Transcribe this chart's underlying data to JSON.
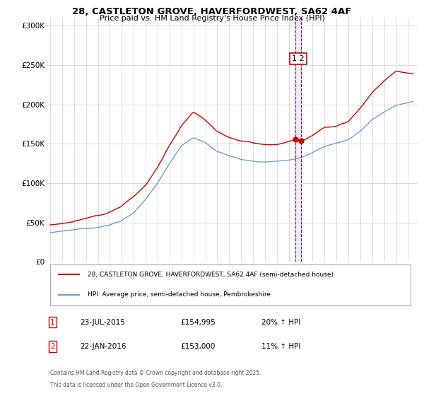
{
  "title_line1": "28, CASTLETON GROVE, HAVERFORDWEST, SA62 4AF",
  "title_line2": "Price paid vs. HM Land Registry's House Price Index (HPI)",
  "legend_line1": "28, CASTLETON GROVE, HAVERFORDWEST, SA62 4AF (semi-detached house)",
  "legend_line2": "HPI: Average price, semi-detached house, Pembrokeshire",
  "sale1_label": "1",
  "sale1_date": "23-JUL-2015",
  "sale1_price": "£154,995",
  "sale1_hpi": "20% ↑ HPI",
  "sale2_label": "2",
  "sale2_date": "22-JAN-2016",
  "sale2_price": "£153,000",
  "sale2_hpi": "11% ↑ HPI",
  "footnote_line1": "Contains HM Land Registry data © Crown copyright and database right 2025.",
  "footnote_line2": "This data is licensed under the Open Government Licence v3.0.",
  "line_color_red": "#cc0000",
  "line_color_blue": "#7799cc",
  "vline_color": "#cc0000",
  "shade_color": "#ddeeff",
  "background_color": "#ffffff",
  "grid_color": "#cccccc",
  "ylim": [
    0,
    310000
  ],
  "yticks": [
    0,
    50000,
    100000,
    150000,
    200000,
    250000,
    300000
  ],
  "ytick_labels": [
    "£0",
    "£50K",
    "£100K",
    "£150K",
    "£200K",
    "£250K",
    "£300K"
  ],
  "sale1_x": 2015.5417,
  "sale2_x": 2016.0,
  "xmin": 1994.7,
  "xmax": 2025.8
}
